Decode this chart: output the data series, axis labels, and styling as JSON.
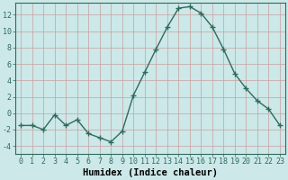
{
  "x": [
    0,
    1,
    2,
    3,
    4,
    5,
    6,
    7,
    8,
    9,
    10,
    11,
    12,
    13,
    14,
    15,
    16,
    17,
    18,
    19,
    20,
    21,
    22,
    23
  ],
  "y": [
    -1.5,
    -1.5,
    -2.0,
    -0.2,
    -1.5,
    -0.8,
    -2.5,
    -3.0,
    -3.5,
    -2.2,
    2.2,
    5.0,
    7.8,
    10.5,
    12.8,
    13.0,
    12.2,
    10.5,
    7.8,
    4.8,
    3.0,
    1.5,
    0.5,
    -1.5
  ],
  "line_color": "#2e6b5e",
  "marker": "+",
  "marker_size": 4,
  "bg_color": "#cce8e8",
  "grid_color": "#c8a0a0",
  "xlabel": "Humidex (Indice chaleur)",
  "ylim": [
    -5,
    13.5
  ],
  "yticks": [
    -4,
    -2,
    0,
    2,
    4,
    6,
    8,
    10,
    12
  ],
  "xticks": [
    0,
    1,
    2,
    3,
    4,
    5,
    6,
    7,
    8,
    9,
    10,
    11,
    12,
    13,
    14,
    15,
    16,
    17,
    18,
    19,
    20,
    21,
    22,
    23
  ],
  "xlabel_fontsize": 7.5,
  "tick_fontsize": 6.0,
  "line_width": 1.0
}
